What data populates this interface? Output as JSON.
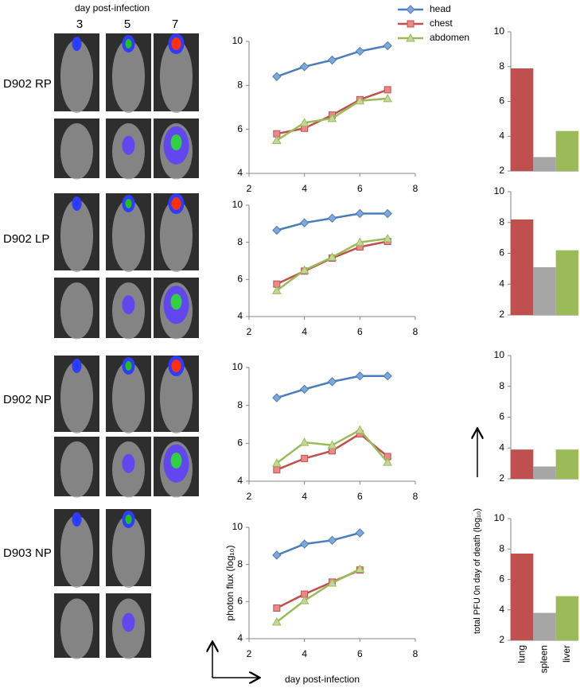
{
  "header": {
    "title": "day post-infection",
    "days": [
      "3",
      "5",
      "7"
    ]
  },
  "rows": [
    "D902 RP",
    "D902 LP",
    "D902 NP",
    "D903 NP"
  ],
  "chart_data": [
    {
      "type": "line",
      "xlim": [
        2,
        8
      ],
      "xticks": [
        2,
        4,
        6,
        8
      ],
      "ylim": [
        4,
        10
      ],
      "yticks": [
        4,
        6,
        8,
        10
      ],
      "legend": "top-right",
      "x": [
        3,
        4,
        5,
        6,
        7
      ],
      "series": [
        {
          "name": "head",
          "color": "#4a7ebb",
          "marker": "diamond",
          "values": [
            8.4,
            8.85,
            9.15,
            9.55,
            9.8
          ]
        },
        {
          "name": "chest",
          "color": "#c0504d",
          "marker": "square",
          "values": [
            5.8,
            6.05,
            6.65,
            7.35,
            7.8
          ]
        },
        {
          "name": "abdomen",
          "color": "#9bbb59",
          "marker": "triangle",
          "values": [
            5.5,
            6.3,
            6.5,
            7.3,
            7.4
          ]
        }
      ]
    },
    {
      "type": "line",
      "xlim": [
        2,
        8
      ],
      "xticks": [
        2,
        4,
        6,
        8
      ],
      "ylim": [
        4,
        10
      ],
      "yticks": [
        4,
        6,
        8,
        10
      ],
      "x": [
        3,
        4,
        5,
        6,
        7
      ],
      "series": [
        {
          "color": "#4a7ebb",
          "marker": "diamond",
          "values": [
            8.65,
            9.05,
            9.3,
            9.55,
            9.55
          ]
        },
        {
          "color": "#c0504d",
          "marker": "square",
          "values": [
            5.75,
            6.45,
            7.15,
            7.75,
            8.05
          ]
        },
        {
          "color": "#9bbb59",
          "marker": "triangle",
          "values": [
            5.4,
            6.5,
            7.2,
            8.0,
            8.2
          ]
        }
      ]
    },
    {
      "type": "line",
      "xlim": [
        2,
        8
      ],
      "xticks": [
        2,
        4,
        6,
        8
      ],
      "ylim": [
        4,
        10
      ],
      "yticks": [
        4,
        6,
        8,
        10
      ],
      "x": [
        3,
        4,
        5,
        6,
        7
      ],
      "series": [
        {
          "color": "#4a7ebb",
          "marker": "diamond",
          "values": [
            8.4,
            8.85,
            9.25,
            9.55,
            9.55
          ]
        },
        {
          "color": "#c0504d",
          "marker": "square",
          "values": [
            4.6,
            5.2,
            5.6,
            6.5,
            5.3
          ]
        },
        {
          "color": "#9bbb59",
          "marker": "triangle",
          "values": [
            4.95,
            6.05,
            5.9,
            6.7,
            5.0
          ]
        }
      ]
    },
    {
      "type": "line",
      "xlim": [
        2,
        8
      ],
      "xticks": [
        2,
        4,
        6,
        8
      ],
      "ylim": [
        4,
        10
      ],
      "yticks": [
        4,
        6,
        8,
        10
      ],
      "x_label": "day post-infection",
      "y_label": "photon flux (log₁₀)",
      "x": [
        3,
        4,
        5,
        6
      ],
      "series": [
        {
          "color": "#4a7ebb",
          "marker": "diamond",
          "values": [
            8.5,
            9.1,
            9.3,
            9.7
          ]
        },
        {
          "color": "#c0504d",
          "marker": "square",
          "values": [
            5.65,
            6.4,
            7.05,
            7.7
          ]
        },
        {
          "color": "#9bbb59",
          "marker": "triangle",
          "values": [
            4.9,
            6.05,
            7.0,
            7.75
          ]
        }
      ]
    },
    {
      "type": "bar",
      "ylim": [
        2,
        10
      ],
      "yticks": [
        2,
        4,
        6,
        8,
        10
      ],
      "categories": [
        null,
        null,
        null
      ],
      "colors": [
        "#c0504d",
        "#a6a6a6",
        "#9bbb59"
      ],
      "values": [
        7.9,
        2.8,
        4.3
      ]
    },
    {
      "type": "bar",
      "ylim": [
        2,
        10
      ],
      "yticks": [
        2,
        4,
        6,
        8,
        10
      ],
      "categories": [
        null,
        null,
        null
      ],
      "colors": [
        "#c0504d",
        "#a6a6a6",
        "#9bbb59"
      ],
      "values": [
        8.2,
        5.1,
        6.2
      ]
    },
    {
      "type": "bar",
      "ylim": [
        2,
        10
      ],
      "yticks": [
        2,
        4,
        6,
        8,
        10
      ],
      "categories": [
        null,
        null,
        null
      ],
      "colors": [
        "#c0504d",
        "#a6a6a6",
        "#9bbb59"
      ],
      "values": [
        3.9,
        2.8,
        3.9
      ]
    },
    {
      "type": "bar",
      "ylim": [
        2,
        10
      ],
      "yticks": [
        2,
        4,
        6,
        8,
        10
      ],
      "categories": [
        "lung",
        "spleen",
        "liver"
      ],
      "y_label": "total PFU 0n day of death (log₁₀)",
      "colors": [
        "#c0504d",
        "#a6a6a6",
        "#9bbb59"
      ],
      "values": [
        7.7,
        3.8,
        4.9
      ]
    }
  ]
}
